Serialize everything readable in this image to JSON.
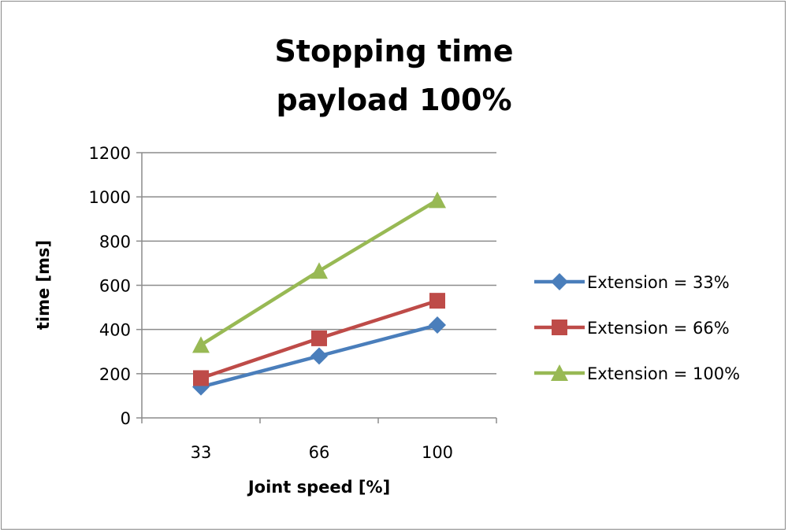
{
  "chart_data": {
    "type": "line",
    "title": [
      "Stopping time",
      "payload 100%"
    ],
    "xlabel": "Joint speed [%]",
    "ylabel": "time [ms]",
    "categories": [
      "33",
      "66",
      "100"
    ],
    "ylim": [
      0,
      1200
    ],
    "yticks": [
      0,
      200,
      400,
      600,
      800,
      1000,
      1200
    ],
    "grid": true,
    "legend": "right",
    "series": [
      {
        "name": "Extension = 33%",
        "values": [
          140,
          280,
          420
        ],
        "color": "#4a7ebb",
        "marker": "diamond"
      },
      {
        "name": "Extension = 66%",
        "values": [
          180,
          360,
          530
        ],
        "color": "#be4b48",
        "marker": "square"
      },
      {
        "name": "Extension = 100%",
        "values": [
          330,
          665,
          985
        ],
        "color": "#98b954",
        "marker": "triangle"
      }
    ]
  }
}
